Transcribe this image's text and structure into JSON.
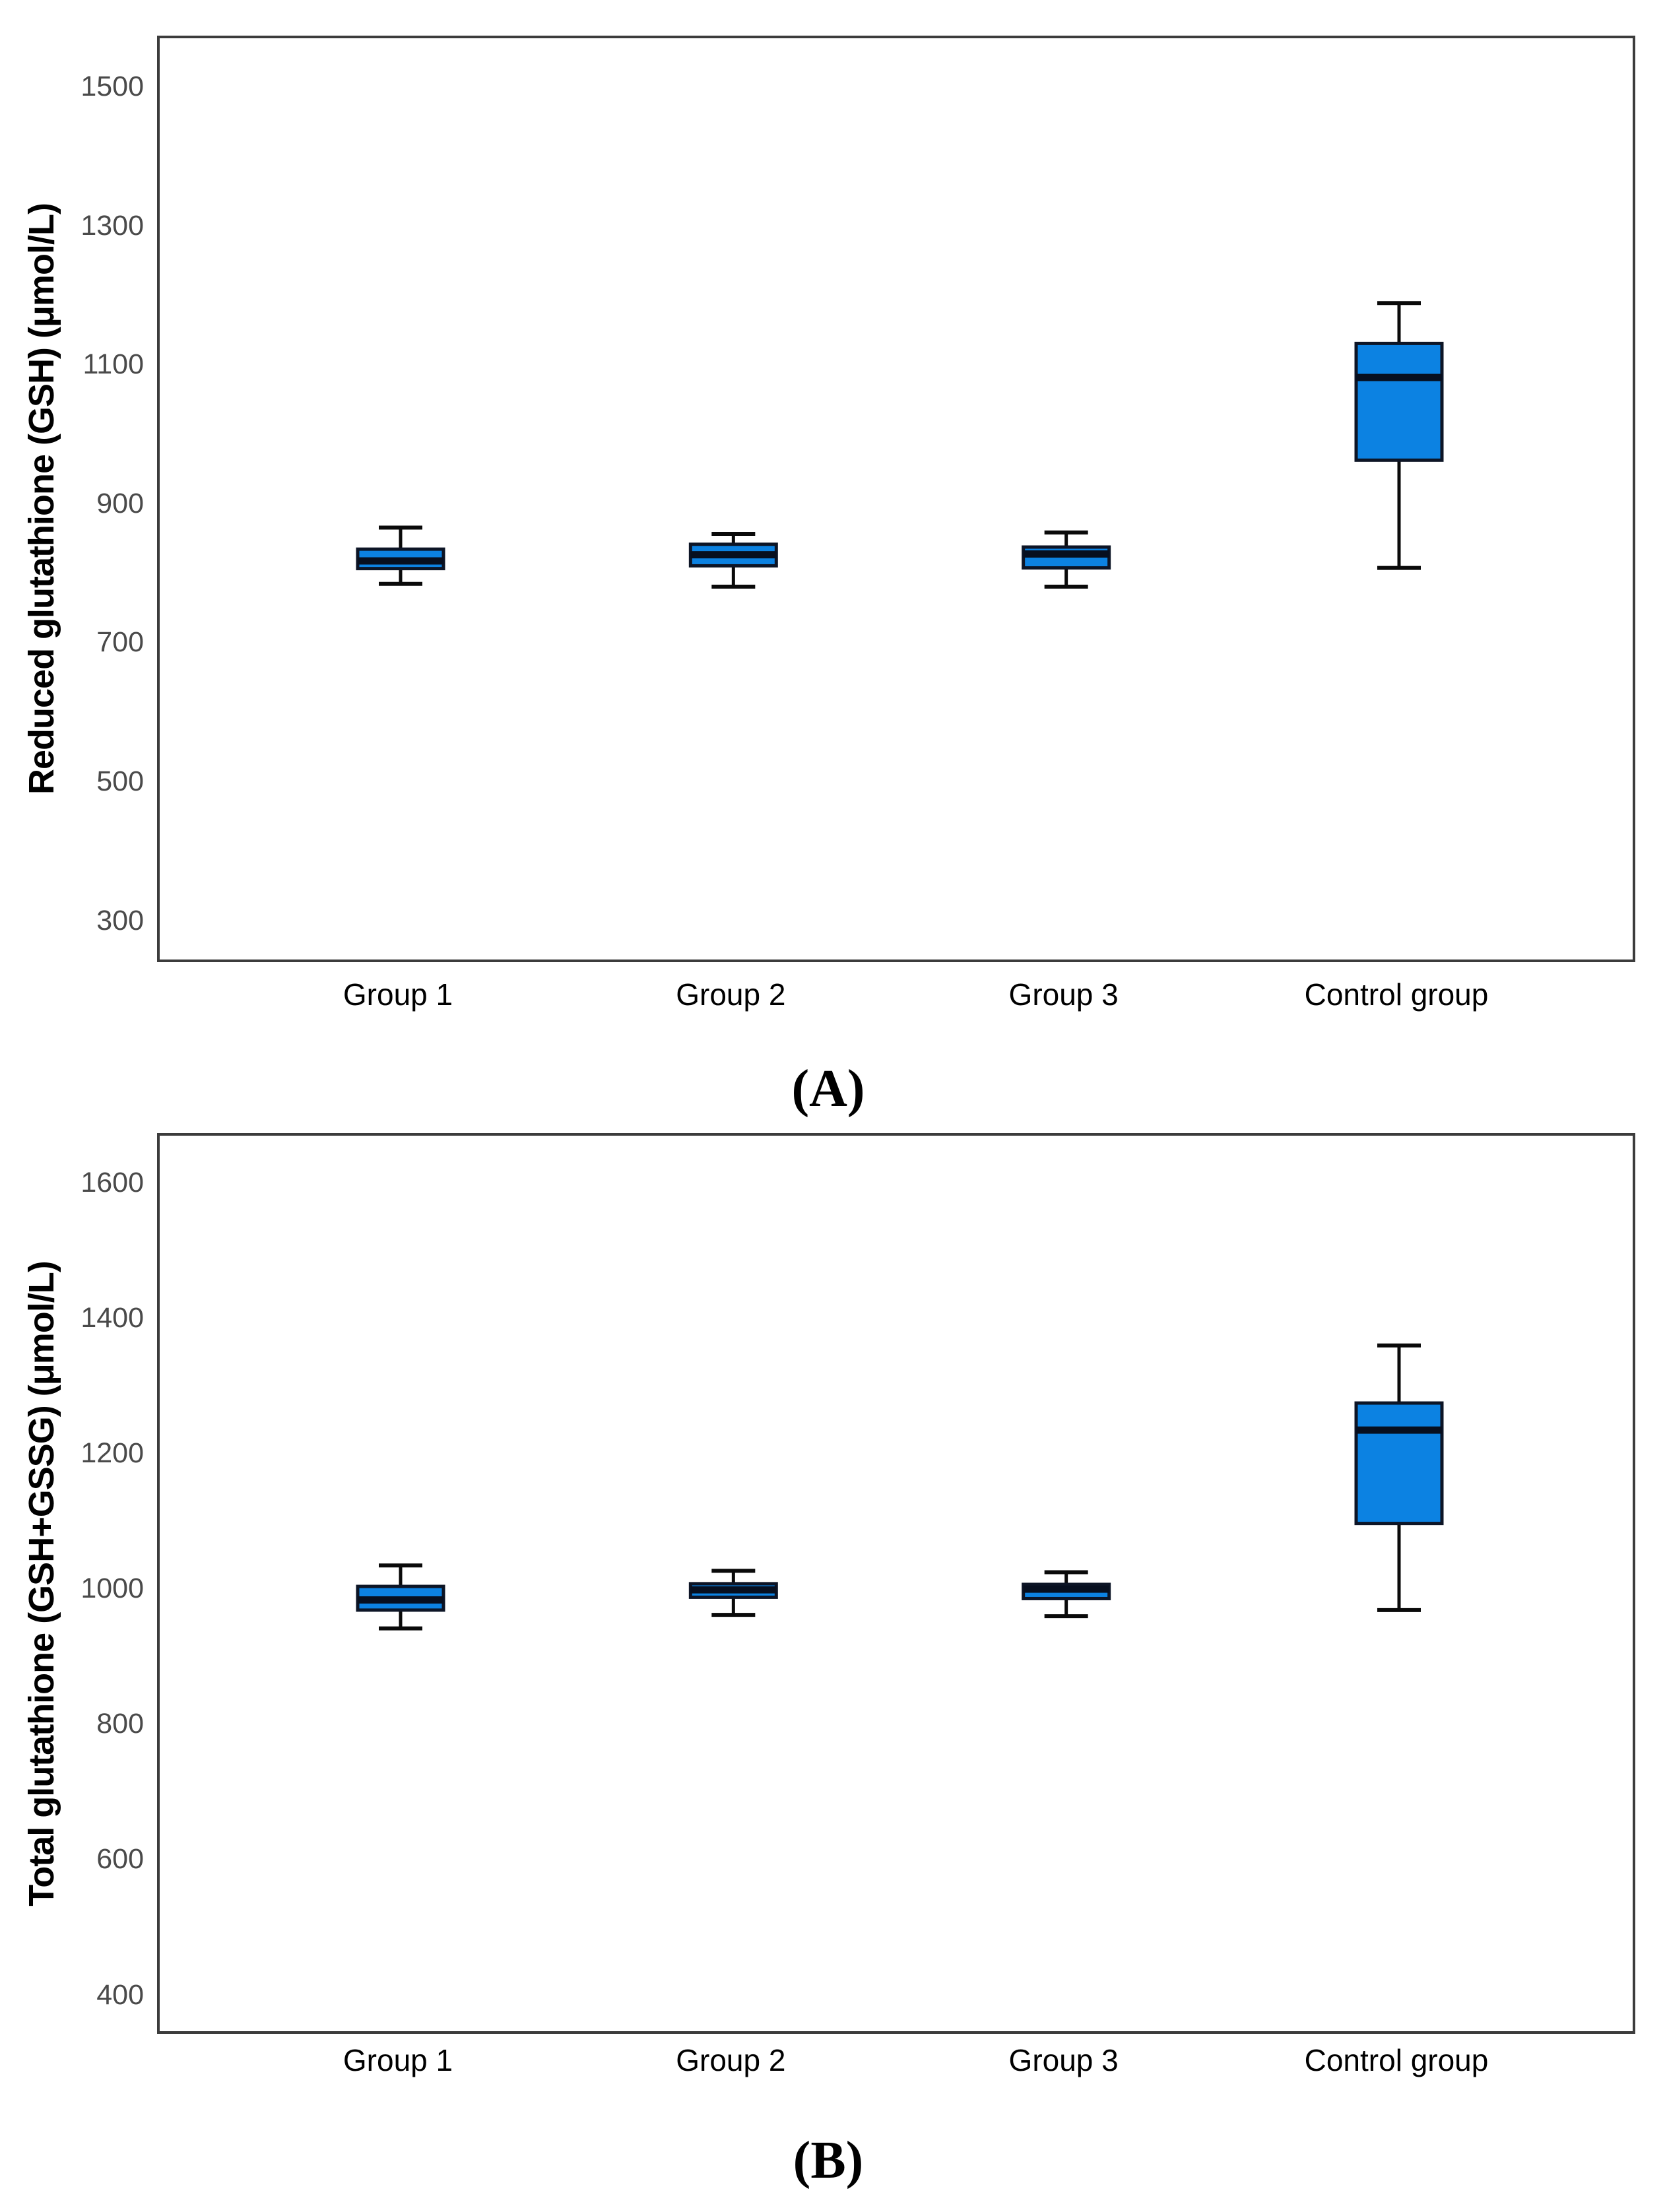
{
  "page": {
    "background": "#ffffff"
  },
  "style": {
    "box_fill": "#0c82e2",
    "box_border": "#0d1526",
    "median_color": "#070f1f",
    "whisker_color": "#0a0a0a",
    "tick_label_color": "#4a4a4a",
    "category_label_color": "#000000",
    "plot_border_color": "#3c3c3c"
  },
  "chart_data": [
    {
      "type": "box",
      "panel_label": "(A)",
      "ylabel": "Reduced glutathione (GSH) (μmol/L)",
      "xlabel": "",
      "categories": [
        "Group 1",
        "Group 2",
        "Group 3",
        "Control group"
      ],
      "yticks": [
        300,
        500,
        700,
        900,
        1100,
        1300,
        1500
      ],
      "ylim": [
        240,
        1573
      ],
      "grid": false,
      "legend": false,
      "series": [
        {
          "category": "Group 1",
          "min": 788,
          "q1": 810,
          "median": 821,
          "q3": 838,
          "max": 869
        },
        {
          "category": "Group 2",
          "min": 784,
          "q1": 814,
          "median": 830,
          "q3": 845,
          "max": 860
        },
        {
          "category": "Group 3",
          "min": 784,
          "q1": 811,
          "median": 831,
          "q3": 841,
          "max": 862
        },
        {
          "category": "Control group",
          "min": 811,
          "q1": 966,
          "median": 1085,
          "q3": 1134,
          "max": 1192
        }
      ]
    },
    {
      "type": "box",
      "panel_label": "(B)",
      "ylabel": "Total glutathione (GSH+GSSG) (μmol/L)",
      "xlabel": "",
      "categories": [
        "Group 1",
        "Group 2",
        "Group 3",
        "Control group"
      ],
      "yticks": [
        400,
        600,
        800,
        1000,
        1200,
        1400,
        1600
      ],
      "ylim": [
        342,
        1673
      ],
      "grid": false,
      "legend": false,
      "series": [
        {
          "category": "Group 1",
          "min": 945,
          "q1": 972,
          "median": 987,
          "q3": 1007,
          "max": 1038
        },
        {
          "category": "Group 2",
          "min": 965,
          "q1": 991,
          "median": 1002,
          "q3": 1011,
          "max": 1030
        },
        {
          "category": "Group 3",
          "min": 963,
          "q1": 989,
          "median": 1003,
          "q3": 1010,
          "max": 1028
        },
        {
          "category": "Control group",
          "min": 972,
          "q1": 1100,
          "median": 1238,
          "q3": 1278,
          "max": 1363
        }
      ]
    }
  ]
}
